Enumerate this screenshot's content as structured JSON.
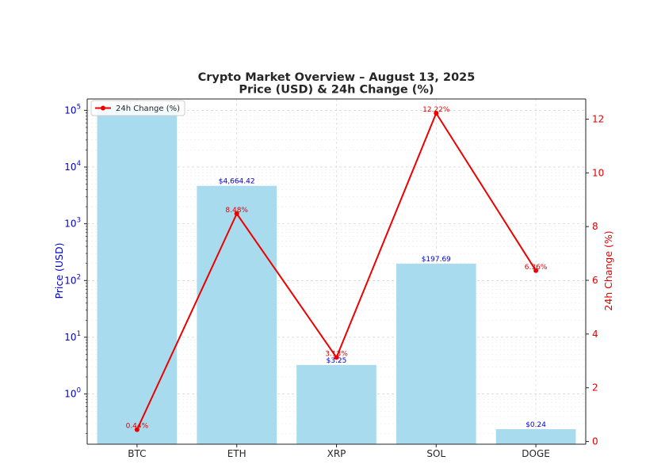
{
  "chart_data": {
    "type": "bar+line",
    "title": "Crypto Market Overview – August 13, 2025",
    "subtitle": "Price (USD) & 24h Change (%)",
    "categories": [
      "BTC",
      "ETH",
      "XRP",
      "SOL",
      "DOGE"
    ],
    "series": [
      {
        "name": "Price (USD)",
        "type": "bar",
        "axis": "left",
        "scale": "log",
        "color": "#a8dbed",
        "values": [
          120000,
          4664.42,
          3.25,
          197.69,
          0.24
        ],
        "labels": [
          "",
          "$4,664.42",
          "$3.25",
          "$197.69",
          "$0.24"
        ]
      },
      {
        "name": "24h Change (%)",
        "type": "line",
        "axis": "right",
        "color": "#ee0000",
        "values": [
          0.44,
          8.48,
          3.13,
          12.22,
          6.36
        ],
        "labels": [
          "0.44%",
          "8.48%",
          "3.13%",
          "12.22%",
          "6.36%"
        ]
      }
    ],
    "ylabel": "Price (USD)",
    "y2label": "24h Change (%)",
    "ylim_exp": [
      -0.885,
      5.2
    ],
    "y2lim": [
      -0.1,
      12.75
    ],
    "yticks": [
      {
        "exp": 0,
        "base": "10",
        "sup": "0"
      },
      {
        "exp": 1,
        "base": "10",
        "sup": "1"
      },
      {
        "exp": 2,
        "base": "10",
        "sup": "2"
      },
      {
        "exp": 3,
        "base": "10",
        "sup": "3"
      },
      {
        "exp": 4,
        "base": "10",
        "sup": "4"
      },
      {
        "exp": 5,
        "base": "10",
        "sup": "5"
      }
    ],
    "y2ticks": [
      "0",
      "2",
      "4",
      "6",
      "8",
      "10",
      "12"
    ],
    "grid": true,
    "legend": {
      "position": "top-left",
      "label": "24h Change (%)"
    }
  }
}
